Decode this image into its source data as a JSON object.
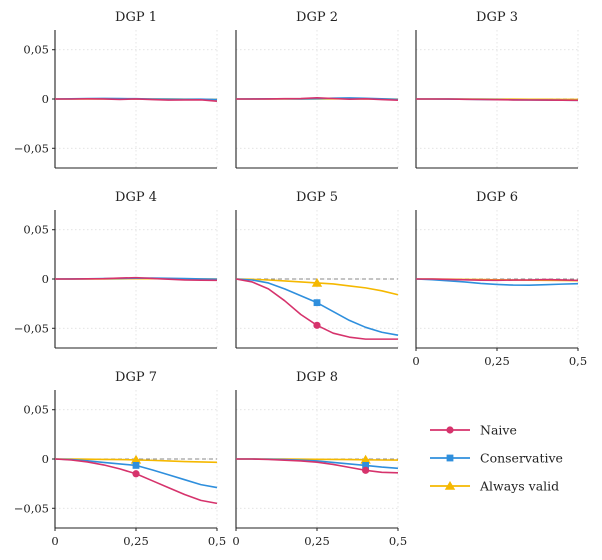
{
  "chart_data": {
    "type": "line",
    "layout": "small multiples, 3 columns",
    "x": [
      0,
      0.05,
      0.1,
      0.15,
      0.2,
      0.25,
      0.3,
      0.35,
      0.4,
      0.45,
      0.5
    ],
    "xlim": [
      0,
      0.5
    ],
    "ylim": [
      -0.07,
      0.07
    ],
    "x_ticks": [
      0,
      0.25,
      0.5
    ],
    "x_tick_labels": [
      "0",
      "0,25",
      "0,5"
    ],
    "y_ticks": [
      0.05,
      0,
      -0.05
    ],
    "y_tick_labels": [
      "0,05",
      "0",
      "−0,05"
    ],
    "reference_line": 0,
    "grid": true,
    "series_names": [
      "Naive",
      "Conservative",
      "Always valid"
    ],
    "colors": {
      "Naive": "#d6336c",
      "Conservative": "#2f8fdd",
      "Always valid": "#f5b800",
      "reference": "#888888",
      "axis": "#222222",
      "grid": "#d9d9d9"
    },
    "marker_names": {
      "Naive": "circle",
      "Conservative": "square",
      "Always valid": "triangle"
    },
    "legend": {
      "position": "bottom-right",
      "items": [
        {
          "label": "Naive",
          "color": "#d6336c",
          "marker": "circle"
        },
        {
          "label": "Conservative",
          "color": "#2f8fdd",
          "marker": "square"
        },
        {
          "label": "Always valid",
          "color": "#f5b800",
          "marker": "triangle"
        }
      ]
    },
    "panels": [
      {
        "title": "DGP 1",
        "show_y_labels": true,
        "show_x_labels": false,
        "series": [
          {
            "name": "Naive",
            "values": [
              0,
              0,
              0.0002,
              0.0001,
              -0.0004,
              0.0001,
              -0.0006,
              -0.0011,
              -0.0009,
              -0.0008,
              -0.0022
            ]
          },
          {
            "name": "Conservative",
            "values": [
              0,
              0.0002,
              0.0004,
              0.0006,
              0.0004,
              0.0003,
              0,
              -0.0002,
              -0.0003,
              -0.0002,
              -0.0006
            ]
          },
          {
            "name": "Always valid",
            "values": [
              0,
              0,
              0.0001,
              0.0001,
              0,
              0,
              -0.0001,
              -0.0001,
              -0.0002,
              -0.0003,
              -0.0004
            ]
          }
        ],
        "markers": []
      },
      {
        "title": "DGP 2",
        "show_y_labels": false,
        "show_x_labels": false,
        "series": [
          {
            "name": "Naive",
            "values": [
              0,
              0,
              0.0001,
              0.0003,
              0.0004,
              0.0012,
              0.0005,
              -0.0002,
              0.0002,
              -0.0006,
              -0.0012
            ]
          },
          {
            "name": "Conservative",
            "values": [
              0,
              0.0001,
              0.0002,
              0.0002,
              0.0001,
              0.0003,
              0.0008,
              0.0011,
              0.0007,
              0.0002,
              -0.0004
            ]
          },
          {
            "name": "Always valid",
            "values": [
              0,
              0,
              0.0001,
              0.0001,
              0.0001,
              0.0001,
              0.0002,
              0.0002,
              0.0001,
              0,
              -0.0002
            ]
          }
        ],
        "markers": []
      },
      {
        "title": "DGP 3",
        "show_y_labels": false,
        "show_x_labels": false,
        "series": [
          {
            "name": "Naive",
            "values": [
              0,
              0,
              0,
              -0.0003,
              -0.0005,
              -0.0007,
              -0.0009,
              -0.001,
              -0.0011,
              -0.0012,
              -0.0014
            ]
          },
          {
            "name": "Conservative",
            "values": [
              0,
              0,
              -0.0001,
              -0.0002,
              -0.0004,
              -0.0006,
              -0.0008,
              -0.001,
              -0.0011,
              -0.0012,
              -0.0013
            ]
          },
          {
            "name": "Always valid",
            "values": [
              0,
              0,
              0,
              -0.0001,
              -0.0001,
              -0.0002,
              -0.0002,
              -0.0003,
              -0.0003,
              -0.0004,
              -0.0004
            ]
          }
        ],
        "markers": []
      },
      {
        "title": "DGP 4",
        "show_y_labels": true,
        "show_x_labels": false,
        "series": [
          {
            "name": "Naive",
            "values": [
              0,
              0,
              0.0002,
              0.0003,
              0.0009,
              0.0014,
              0.0006,
              -0.0002,
              -0.0009,
              -0.0012,
              -0.0013
            ]
          },
          {
            "name": "Conservative",
            "values": [
              0,
              0.0001,
              0.0002,
              0.0004,
              0.0006,
              0.0008,
              0.0009,
              0.0007,
              0.0004,
              0.0001,
              -0.0002
            ]
          },
          {
            "name": "Always valid",
            "values": [
              0,
              0,
              0.0001,
              0.0001,
              0.0002,
              0.0003,
              0.0003,
              0.0002,
              0.0001,
              0,
              -0.0001
            ]
          }
        ],
        "markers": []
      },
      {
        "title": "DGP 5",
        "show_y_labels": false,
        "show_x_labels": false,
        "series": [
          {
            "name": "Naive",
            "values": [
              0,
              -0.003,
              -0.01,
              -0.022,
              -0.036,
              -0.047,
              -0.055,
              -0.059,
              -0.061,
              -0.061,
              -0.061
            ]
          },
          {
            "name": "Conservative",
            "values": [
              0,
              -0.001,
              -0.004,
              -0.01,
              -0.017,
              -0.024,
              -0.033,
              -0.042,
              -0.049,
              -0.054,
              -0.057
            ]
          },
          {
            "name": "Always valid",
            "values": [
              0,
              -0.0003,
              -0.001,
              -0.002,
              -0.003,
              -0.004,
              -0.005,
              -0.007,
              -0.009,
              -0.012,
              -0.016
            ]
          }
        ],
        "markers": [
          {
            "x": 0.25,
            "marker": "on"
          }
        ]
      },
      {
        "title": "DGP 6",
        "show_y_labels": false,
        "show_x_labels": true,
        "series": [
          {
            "name": "Naive",
            "values": [
              0,
              0,
              -0.0004,
              -0.0008,
              -0.0012,
              -0.0013,
              -0.0011,
              -0.001,
              -0.0006,
              -0.0009,
              -0.0014
            ]
          },
          {
            "name": "Conservative",
            "values": [
              0,
              -0.0007,
              -0.0018,
              -0.003,
              -0.0045,
              -0.0055,
              -0.0062,
              -0.0063,
              -0.0058,
              -0.0052,
              -0.0048
            ]
          },
          {
            "name": "Always valid",
            "values": [
              0,
              0,
              -0.0002,
              -0.0004,
              -0.0006,
              -0.0008,
              -0.001,
              -0.0012,
              -0.0013,
              -0.0015,
              -0.0017
            ]
          }
        ],
        "markers": []
      },
      {
        "title": "DGP 7",
        "show_y_labels": true,
        "show_x_labels": true,
        "series": [
          {
            "name": "Naive",
            "values": [
              0,
              -0.001,
              -0.003,
              -0.006,
              -0.01,
              -0.015,
              -0.022,
              -0.029,
              -0.036,
              -0.042,
              -0.045
            ]
          },
          {
            "name": "Conservative",
            "values": [
              0,
              -0.0006,
              -0.0018,
              -0.0035,
              -0.005,
              -0.0065,
              -0.011,
              -0.016,
              -0.021,
              -0.026,
              -0.029
            ]
          },
          {
            "name": "Always valid",
            "values": [
              0,
              -0.0001,
              -0.0002,
              -0.0004,
              -0.0006,
              -0.0009,
              -0.0014,
              -0.002,
              -0.0026,
              -0.003,
              -0.0034
            ]
          }
        ],
        "markers": [
          {
            "x": 0.25,
            "marker": "on"
          }
        ]
      },
      {
        "title": "DGP 8",
        "show_y_labels": false,
        "show_x_labels": true,
        "series": [
          {
            "name": "Naive",
            "values": [
              0,
              0,
              -0.0005,
              -0.0012,
              -0.002,
              -0.0032,
              -0.0055,
              -0.0085,
              -0.0115,
              -0.0135,
              -0.014
            ]
          },
          {
            "name": "Conservative",
            "values": [
              0,
              0,
              -0.0002,
              -0.0006,
              -0.0012,
              -0.002,
              -0.0035,
              -0.005,
              -0.0065,
              -0.0082,
              -0.0095
            ]
          },
          {
            "name": "Always valid",
            "values": [
              0,
              0,
              0,
              -0.0001,
              -0.0002,
              -0.0003,
              -0.0004,
              -0.0006,
              -0.0008,
              -0.001,
              -0.0011
            ]
          }
        ],
        "markers": [
          {
            "x": 0.4,
            "marker": "on"
          }
        ]
      }
    ]
  }
}
